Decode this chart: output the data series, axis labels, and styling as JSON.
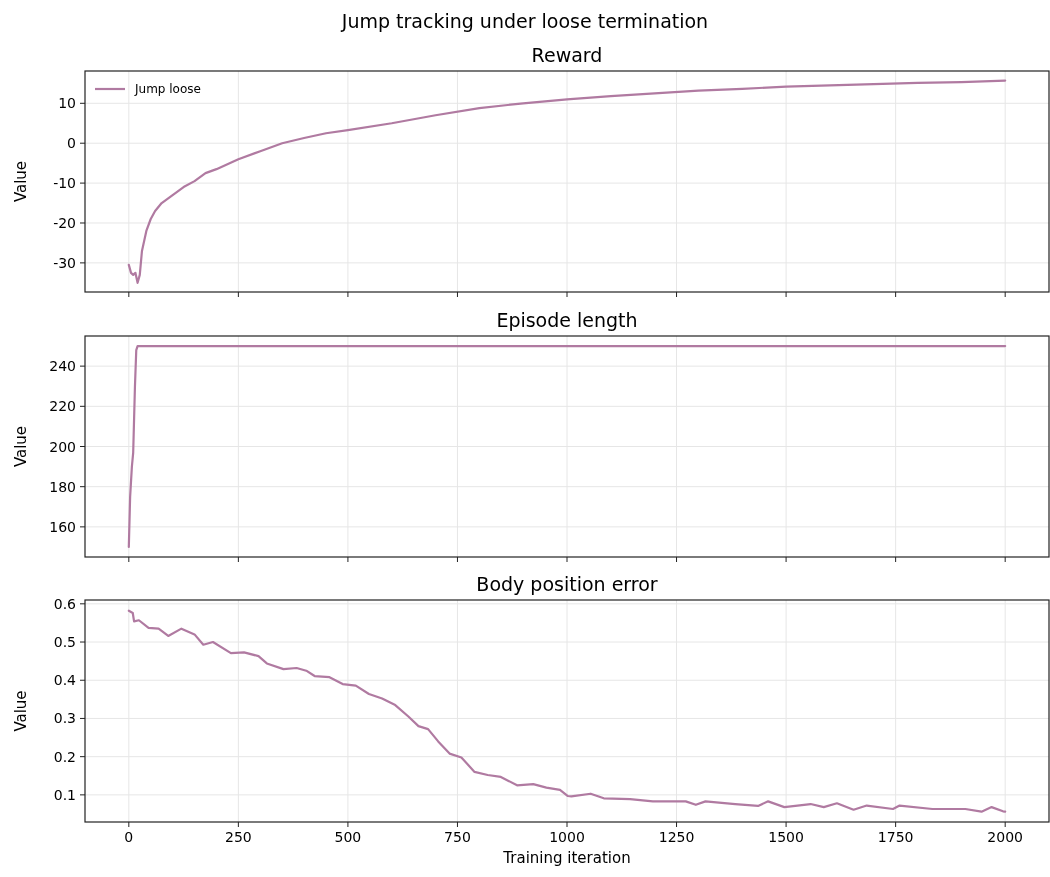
{
  "chart_data": [
    {
      "type": "line",
      "title": "Jump tracking under loose termination",
      "subtitle": "Reward",
      "ylabel": "Value",
      "xlim": [
        -100,
        2100
      ],
      "xticks": [
        0,
        250,
        500,
        750,
        1000,
        1250,
        1500,
        1750,
        2000
      ],
      "ylim": [
        -37.3,
        18.1
      ],
      "yticks": [
        -30,
        -20,
        -10,
        0,
        10
      ],
      "grid": true,
      "legend": "top left",
      "tick_labels": "y",
      "line_style": "solid",
      "series": [
        {
          "name": "Jump loose",
          "color": "#b07aa1",
          "x": [
            0,
            5,
            10,
            15,
            20,
            25,
            30,
            40,
            50,
            60,
            75,
            100,
            125,
            150,
            175,
            200,
            250,
            300,
            350,
            400,
            450,
            500,
            600,
            700,
            800,
            900,
            1000,
            1100,
            1200,
            1300,
            1400,
            1500,
            1600,
            1700,
            1800,
            1900,
            2000
          ],
          "values": [
            -30.5,
            -32.5,
            -33,
            -32.5,
            -35,
            -33,
            -27,
            -22,
            -19,
            -17,
            -15,
            -13,
            -11,
            -9.5,
            -7.5,
            -6.5,
            -4,
            -2,
            0,
            1.3,
            2.5,
            3.3,
            5,
            7,
            8.8,
            10,
            11,
            11.8,
            12.5,
            13.2,
            13.6,
            14.2,
            14.5,
            14.8,
            15.1,
            15.3,
            15.7
          ]
        }
      ]
    },
    {
      "type": "line",
      "title": "Episode length",
      "ylabel": "Value",
      "xlim": [
        -100,
        2100
      ],
      "xticks": [
        0,
        250,
        500,
        750,
        1000,
        1250,
        1500,
        1750,
        2000
      ],
      "ylim": [
        145,
        255
      ],
      "yticks": [
        160,
        180,
        200,
        220,
        240
      ],
      "grid": true,
      "tick_labels": "y",
      "line_style": "solid",
      "series": [
        {
          "color": "#b07aa1",
          "x": [
            0,
            3,
            7,
            10,
            14,
            17,
            20,
            2000
          ],
          "values": [
            150,
            175,
            190,
            197,
            230,
            248,
            250,
            250
          ]
        }
      ]
    },
    {
      "type": "line",
      "title": "Body position error",
      "xlabel": "Training iteration",
      "ylabel": "Value",
      "xlim": [
        -100,
        2100
      ],
      "xticks": [
        0,
        250,
        500,
        750,
        1000,
        1250,
        1500,
        1750,
        2000
      ],
      "ylim": [
        0.029,
        0.61
      ],
      "yticks": [
        {
          "value": 0.1,
          "label": "0.1"
        },
        {
          "value": 0.2,
          "label": "0.2"
        },
        {
          "value": 0.3,
          "label": "0.3"
        },
        {
          "value": 0.4,
          "label": "0.4"
        },
        {
          "value": 0.5,
          "label": "0.5"
        },
        {
          "value": 0.6,
          "label": "0.6"
        }
      ],
      "grid": true,
      "line_style": "solid",
      "series": [
        {
          "color": "#b07aa1",
          "x": [
            0,
            9,
            12,
            23,
            45,
            68,
            90,
            120,
            150,
            170,
            192,
            233,
            263,
            296,
            315,
            353,
            383,
            405,
            424,
            458,
            488,
            518,
            548,
            578,
            608,
            638,
            661,
            683,
            706,
            732,
            759,
            789,
            819,
            849,
            886,
            923,
            953,
            984,
            1002,
            1010,
            1054,
            1084,
            1144,
            1196,
            1271,
            1294,
            1316,
            1384,
            1436,
            1459,
            1496,
            1556,
            1586,
            1616,
            1654,
            1684,
            1744,
            1759,
            1834,
            1909,
            1946,
            1969,
            1995,
            2000
          ],
          "values": [
            0.582,
            0.576,
            0.554,
            0.557,
            0.537,
            0.535,
            0.516,
            0.535,
            0.52,
            0.493,
            0.5,
            0.471,
            0.473,
            0.463,
            0.444,
            0.429,
            0.432,
            0.425,
            0.411,
            0.408,
            0.39,
            0.386,
            0.364,
            0.352,
            0.335,
            0.305,
            0.28,
            0.272,
            0.24,
            0.208,
            0.198,
            0.16,
            0.152,
            0.147,
            0.125,
            0.128,
            0.119,
            0.113,
            0.097,
            0.096,
            0.103,
            0.091,
            0.089,
            0.083,
            0.083,
            0.074,
            0.083,
            0.076,
            0.071,
            0.083,
            0.068,
            0.076,
            0.068,
            0.078,
            0.061,
            0.072,
            0.063,
            0.072,
            0.063,
            0.063,
            0.056,
            0.068,
            0.057,
            0.056
          ]
        }
      ]
    }
  ]
}
